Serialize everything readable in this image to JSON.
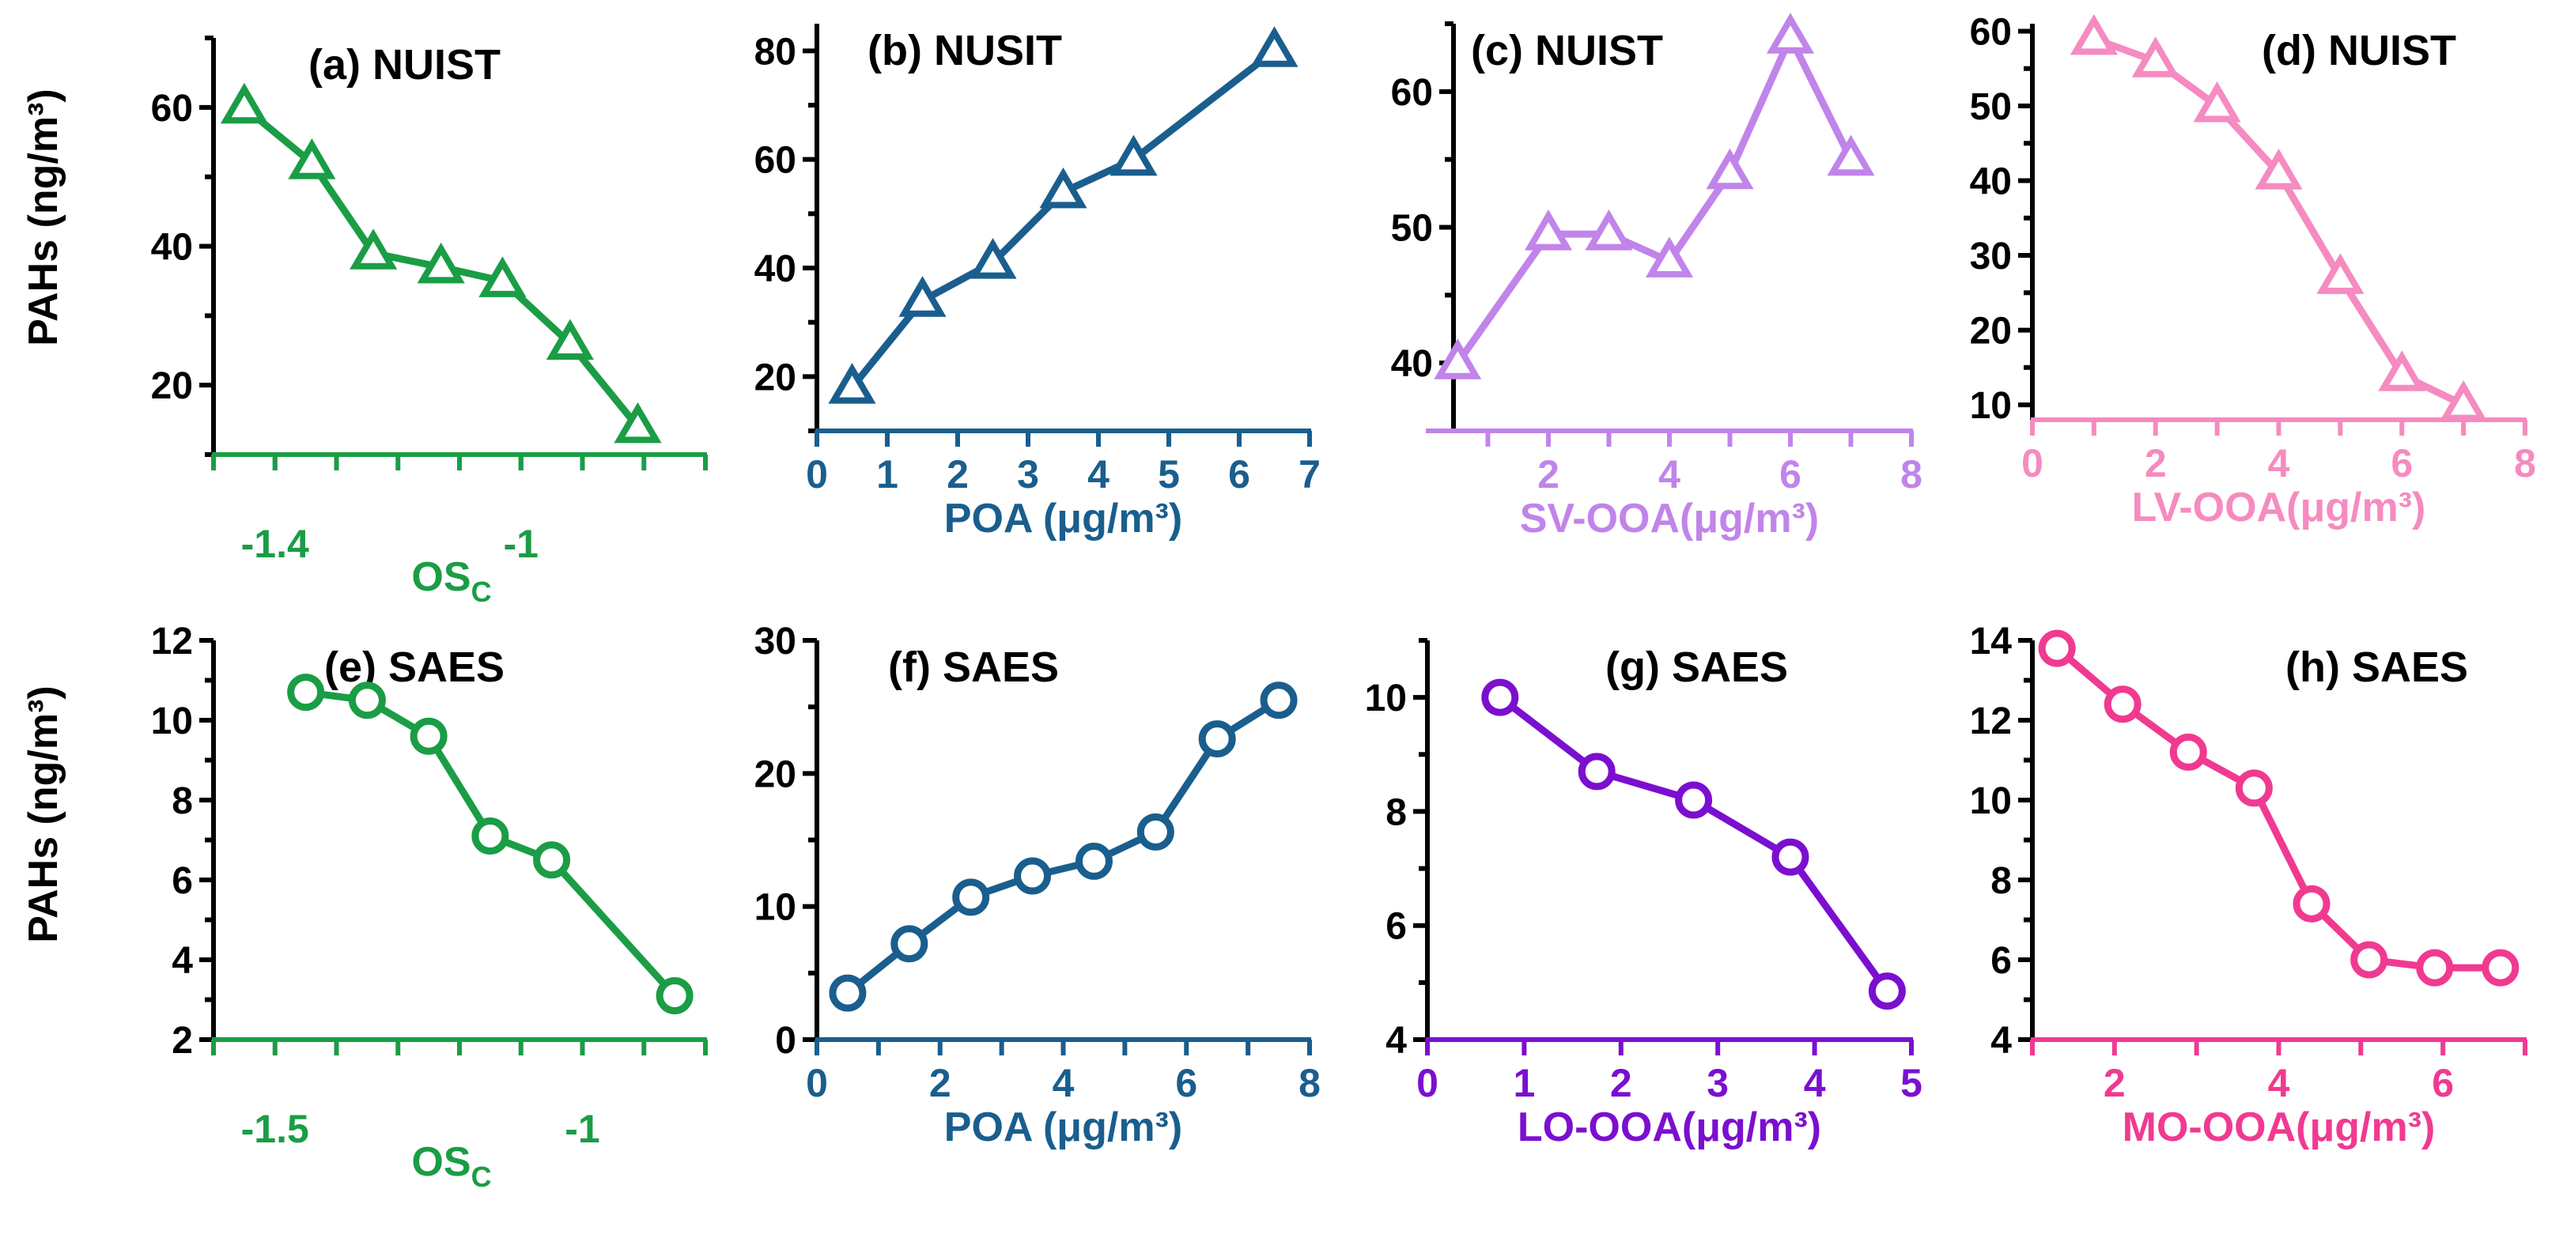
{
  "figure": {
    "y_axis_label": "PAHs (ng/m³)",
    "colors": {
      "green": "#1a9d45",
      "blue": "#1a5e8e",
      "light_purple": "#c184ea",
      "light_pink": "#f58bc0",
      "purple": "#7b0fd0",
      "pink": "#f03a91",
      "black": "#000000"
    }
  },
  "chart_data": [
    {
      "id": "a",
      "type": "line",
      "marker": "triangle",
      "color": "#1a9d45",
      "title": "(a) NUIST",
      "xlabel": "OS",
      "xlabel_sub": "C",
      "ylabel": "PAHs (ng/m³)",
      "xlim": [
        -1.5,
        -0.7
      ],
      "ylim": [
        10,
        70
      ],
      "xticks_major": [
        -1.4,
        -1.0
      ],
      "xticks_minor": [
        -1.5,
        -1.4,
        -1.3,
        -1.2,
        -1.1,
        -1.0,
        -0.9,
        -0.8,
        -0.7
      ],
      "yticks_major": [
        20,
        40,
        60
      ],
      "yticks_minor": [
        10,
        30,
        50,
        70
      ],
      "x": [
        -1.45,
        -1.34,
        -1.24,
        -1.13,
        -1.03,
        -0.92,
        -0.81
      ],
      "y": [
        60,
        52,
        39,
        37,
        35,
        26,
        14
      ]
    },
    {
      "id": "b",
      "type": "line",
      "marker": "triangle",
      "color": "#1a5e8e",
      "title": "(b) NUSIT",
      "xlabel": "POA (μg/m³)",
      "ylabel": "",
      "xlim": [
        0,
        7
      ],
      "ylim": [
        10,
        85
      ],
      "xticks_major": [
        0,
        1,
        2,
        3,
        4,
        5,
        6,
        7
      ],
      "xticks_minor": [],
      "yticks_major": [
        20,
        40,
        60,
        80
      ],
      "yticks_minor": [
        10,
        30,
        50,
        70
      ],
      "x": [
        0.5,
        1.5,
        2.5,
        3.5,
        4.5,
        6.5
      ],
      "y": [
        18,
        34,
        41,
        54,
        60,
        80
      ]
    },
    {
      "id": "c",
      "type": "line",
      "marker": "triangle",
      "color": "#c184ea",
      "title": "(c) NUIST",
      "xlabel": "SV-OOA(μg/m³)",
      "ylabel": "",
      "xlim": [
        0,
        8
      ],
      "ylim": [
        35,
        65
      ],
      "xticks_major": [
        2,
        4,
        6,
        8
      ],
      "xticks_minor": [
        1,
        3,
        5,
        7
      ],
      "yticks_major": [
        40,
        50,
        60
      ],
      "yticks_minor": [
        35,
        45,
        55,
        65
      ],
      "x": [
        0.5,
        2.0,
        3.0,
        4.0,
        5.0,
        6.0,
        7.0
      ],
      "y": [
        40,
        49.5,
        49.5,
        47.5,
        54,
        64,
        55
      ]
    },
    {
      "id": "d",
      "type": "line",
      "marker": "triangle",
      "color": "#f58bc0",
      "title": "(d) NUIST",
      "xlabel": "LV-OOA(μg/m³)",
      "ylabel": "",
      "xlim": [
        0,
        8
      ],
      "ylim": [
        8,
        61
      ],
      "xticks_major": [
        0,
        2,
        4,
        6,
        8
      ],
      "xticks_minor": [
        1,
        3,
        5,
        7
      ],
      "yticks_major": [
        10,
        20,
        30,
        40,
        50,
        60
      ],
      "yticks_minor": [
        15,
        25,
        35,
        45,
        55
      ],
      "x": [
        1.0,
        2.0,
        3.0,
        4.0,
        5.0,
        6.0,
        7.0
      ],
      "y": [
        59,
        56,
        50,
        41,
        27,
        14,
        10
      ]
    },
    {
      "id": "e",
      "type": "line",
      "marker": "circle",
      "color": "#1a9d45",
      "title": "(e) SAES",
      "xlabel": "OS",
      "xlabel_sub": "C",
      "ylabel": "PAHs (ng/m³)",
      "xlim": [
        -1.6,
        -0.8
      ],
      "ylim": [
        2,
        12
      ],
      "xticks_major": [
        -1.5,
        -1.0
      ],
      "xticks_minor": [
        -1.6,
        -1.4,
        -1.3,
        -1.2,
        -1.1,
        -0.9,
        -0.8
      ],
      "yticks_major": [
        2,
        4,
        6,
        8,
        10,
        12
      ],
      "yticks_minor": [
        3,
        5,
        7,
        9,
        11
      ],
      "x": [
        -1.45,
        -1.35,
        -1.25,
        -1.15,
        -1.05,
        -0.85
      ],
      "y": [
        10.7,
        10.5,
        9.6,
        7.1,
        6.5,
        3.1
      ]
    },
    {
      "id": "f",
      "type": "line",
      "marker": "circle",
      "color": "#1a5e8e",
      "title": "(f) SAES",
      "xlabel": "POA (μg/m³)",
      "ylabel": "",
      "xlim": [
        0,
        8
      ],
      "ylim": [
        0,
        30
      ],
      "xticks_major": [
        0,
        2,
        4,
        6,
        8
      ],
      "xticks_minor": [
        1,
        3,
        5,
        7
      ],
      "yticks_major": [
        0,
        10,
        20,
        30
      ],
      "yticks_minor": [
        5,
        15,
        25
      ],
      "x": [
        0.5,
        1.5,
        2.5,
        3.5,
        4.5,
        5.5,
        6.5,
        7.5
      ],
      "y": [
        3.5,
        7.2,
        10.7,
        12.3,
        13.4,
        15.6,
        22.6,
        25.5
      ]
    },
    {
      "id": "g",
      "type": "line",
      "marker": "circle",
      "color": "#7b0fd0",
      "title": "(g) SAES",
      "xlabel": "LO-OOA(μg/m³)",
      "ylabel": "",
      "xlim": [
        0,
        5
      ],
      "ylim": [
        4,
        11
      ],
      "xticks_major": [
        0,
        1,
        2,
        3,
        4,
        5
      ],
      "xticks_minor": [],
      "yticks_major": [
        4,
        6,
        8,
        10
      ],
      "yticks_minor": [
        5,
        7,
        9,
        11
      ],
      "x": [
        0.75,
        1.75,
        2.75,
        3.75,
        4.75
      ],
      "y": [
        10.0,
        8.7,
        8.2,
        7.2,
        4.85
      ]
    },
    {
      "id": "h",
      "type": "line",
      "marker": "circle",
      "color": "#f03a91",
      "title": "(h) SAES",
      "xlabel": "MO-OOA(μg/m³)",
      "ylabel": "",
      "xlim": [
        1,
        7
      ],
      "ylim": [
        4,
        14
      ],
      "xticks_major": [
        2,
        4,
        6
      ],
      "xticks_minor": [
        1,
        3,
        5,
        7
      ],
      "yticks_major": [
        4,
        6,
        8,
        10,
        12,
        14
      ],
      "yticks_minor": [
        5,
        7,
        9,
        11,
        13
      ],
      "x": [
        1.3,
        2.1,
        2.9,
        3.7,
        4.4,
        5.1,
        5.9,
        6.7
      ],
      "y": [
        13.8,
        12.4,
        11.2,
        10.3,
        7.4,
        6.0,
        5.8,
        5.8
      ]
    }
  ]
}
